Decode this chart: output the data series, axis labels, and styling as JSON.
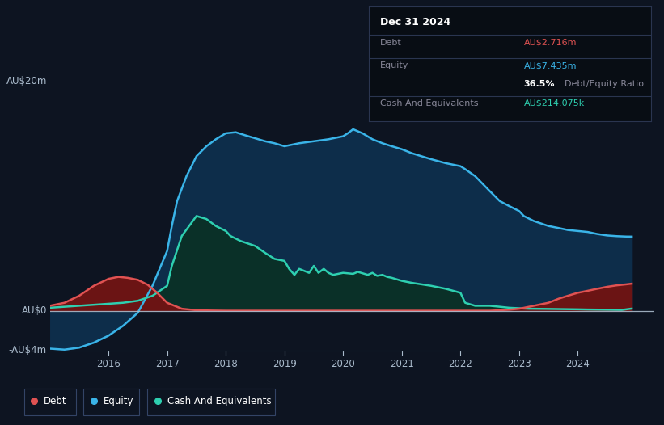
{
  "bg_color": "#0d1421",
  "chart_bg": "#0d1421",
  "grid_color": "#1e2a3a",
  "title_box": {
    "date": "Dec 31 2024",
    "debt_label": "Debt",
    "debt_value": "AU$2.716m",
    "debt_color": "#e05252",
    "equity_label": "Equity",
    "equity_value": "AU$7.435m",
    "equity_color": "#3ab4e8",
    "ratio_bold": "36.5%",
    "ratio_text": " Debt/Equity Ratio",
    "ratio_bold_color": "#ffffff",
    "ratio_text_color": "#888899",
    "cash_label": "Cash And Equivalents",
    "cash_value": "AU$214.075k",
    "cash_color": "#2ecfb0",
    "label_color": "#888899",
    "box_bg": "#080d14",
    "box_border": "#2a3550"
  },
  "ylim": [
    -4,
    22
  ],
  "ytick_positions": [
    -4,
    0,
    20
  ],
  "ytick_labels": [
    "-AU$4m",
    "AU$0",
    "AU$20m"
  ],
  "xticks": [
    2016,
    2017,
    2018,
    2019,
    2020,
    2021,
    2022,
    2023,
    2024
  ],
  "xtick_labels": [
    "2016",
    "2017",
    "2018",
    "2019",
    "2020",
    "2021",
    "2022",
    "2023",
    "2024"
  ],
  "xlim": [
    2015.0,
    2025.3
  ],
  "legend_items": [
    {
      "label": "Debt",
      "color": "#e05252"
    },
    {
      "label": "Equity",
      "color": "#3ab4e8"
    },
    {
      "label": "Cash And Equivalents",
      "color": "#2ecfb0"
    }
  ],
  "equity_x": [
    2015.0,
    2015.25,
    2015.5,
    2015.75,
    2016.0,
    2016.25,
    2016.5,
    2016.75,
    2017.0,
    2017.08,
    2017.17,
    2017.33,
    2017.5,
    2017.67,
    2017.83,
    2018.0,
    2018.17,
    2018.33,
    2018.5,
    2018.67,
    2018.83,
    2019.0,
    2019.25,
    2019.5,
    2019.75,
    2020.0,
    2020.08,
    2020.17,
    2020.33,
    2020.5,
    2020.67,
    2020.83,
    2021.0,
    2021.17,
    2021.5,
    2021.75,
    2022.0,
    2022.08,
    2022.25,
    2022.5,
    2022.67,
    2022.83,
    2023.0,
    2023.08,
    2023.25,
    2023.5,
    2023.67,
    2023.83,
    2024.0,
    2024.17,
    2024.33,
    2024.5,
    2024.67,
    2024.83,
    2024.92
  ],
  "equity_y": [
    -3.8,
    -3.9,
    -3.7,
    -3.2,
    -2.5,
    -1.5,
    -0.2,
    2.5,
    6.0,
    8.5,
    11.0,
    13.5,
    15.5,
    16.5,
    17.2,
    17.8,
    17.9,
    17.6,
    17.3,
    17.0,
    16.8,
    16.5,
    16.8,
    17.0,
    17.2,
    17.5,
    17.8,
    18.2,
    17.8,
    17.2,
    16.8,
    16.5,
    16.2,
    15.8,
    15.2,
    14.8,
    14.5,
    14.2,
    13.5,
    12.0,
    11.0,
    10.5,
    10.0,
    9.5,
    9.0,
    8.5,
    8.3,
    8.1,
    8.0,
    7.9,
    7.7,
    7.55,
    7.48,
    7.44,
    7.435
  ],
  "cash_x": [
    2015.0,
    2015.25,
    2015.5,
    2015.75,
    2016.0,
    2016.25,
    2016.5,
    2016.75,
    2017.0,
    2017.08,
    2017.25,
    2017.5,
    2017.67,
    2017.83,
    2018.0,
    2018.08,
    2018.25,
    2018.5,
    2018.67,
    2018.75,
    2018.83,
    2019.0,
    2019.08,
    2019.17,
    2019.25,
    2019.42,
    2019.5,
    2019.58,
    2019.67,
    2019.75,
    2019.83,
    2020.0,
    2020.17,
    2020.25,
    2020.42,
    2020.5,
    2020.58,
    2020.67,
    2020.75,
    2020.83,
    2021.0,
    2021.17,
    2021.5,
    2021.75,
    2022.0,
    2022.08,
    2022.25,
    2022.5,
    2022.67,
    2022.75,
    2022.83,
    2023.0,
    2023.08,
    2023.17,
    2023.5,
    2023.75,
    2024.0,
    2024.17,
    2024.5,
    2024.75,
    2024.92
  ],
  "cash_y": [
    0.3,
    0.4,
    0.5,
    0.6,
    0.7,
    0.8,
    1.0,
    1.5,
    2.5,
    4.5,
    7.5,
    9.5,
    9.2,
    8.5,
    8.0,
    7.5,
    7.0,
    6.5,
    5.8,
    5.5,
    5.2,
    5.0,
    4.2,
    3.6,
    4.2,
    3.8,
    4.5,
    3.8,
    4.2,
    3.8,
    3.6,
    3.8,
    3.7,
    3.9,
    3.6,
    3.8,
    3.5,
    3.6,
    3.4,
    3.3,
    3.0,
    2.8,
    2.5,
    2.2,
    1.8,
    0.8,
    0.5,
    0.5,
    0.4,
    0.35,
    0.3,
    0.25,
    0.22,
    0.2,
    0.18,
    0.16,
    0.14,
    0.12,
    0.1,
    0.08,
    0.214
  ],
  "debt_x": [
    2015.0,
    2015.25,
    2015.5,
    2015.75,
    2016.0,
    2016.17,
    2016.33,
    2016.5,
    2016.67,
    2016.83,
    2017.0,
    2017.25,
    2017.5,
    2017.75,
    2018.0,
    2018.5,
    2019.0,
    2019.5,
    2020.0,
    2020.5,
    2021.0,
    2021.5,
    2022.0,
    2022.5,
    2022.67,
    2022.83,
    2023.0,
    2023.17,
    2023.33,
    2023.5,
    2023.67,
    2023.83,
    2024.0,
    2024.17,
    2024.33,
    2024.5,
    2024.67,
    2024.83,
    2024.92
  ],
  "debt_y": [
    0.5,
    0.8,
    1.5,
    2.5,
    3.2,
    3.4,
    3.3,
    3.1,
    2.6,
    1.8,
    0.8,
    0.2,
    0.05,
    0.02,
    0.0,
    0.0,
    0.0,
    0.0,
    0.0,
    0.0,
    0.0,
    0.0,
    0.0,
    0.0,
    0.05,
    0.1,
    0.2,
    0.4,
    0.6,
    0.8,
    1.2,
    1.5,
    1.8,
    2.0,
    2.2,
    2.4,
    2.55,
    2.65,
    2.716
  ],
  "equity_line_color": "#3ab4e8",
  "equity_fill_color": "#0d2d4a",
  "cash_line_color": "#2ecfb0",
  "cash_fill_color": "#0a3028",
  "debt_line_color": "#e05252",
  "debt_fill_color": "#6b1414"
}
